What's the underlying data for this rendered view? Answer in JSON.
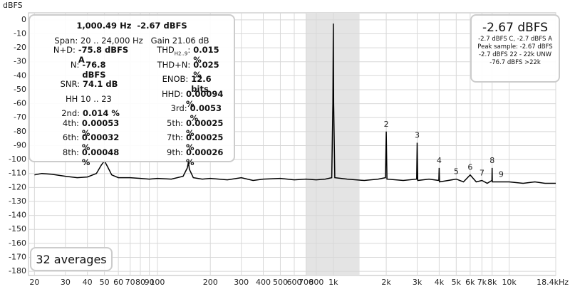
{
  "chart_data": {
    "type": "line",
    "ylabel": "dBFS",
    "x": [
      20,
      22,
      25,
      30,
      35,
      40,
      45,
      48,
      50,
      52,
      55,
      60,
      70,
      80,
      90,
      100,
      120,
      140,
      148,
      150,
      152,
      160,
      180,
      200,
      250,
      300,
      350,
      400,
      500,
      600,
      700,
      800,
      900,
      980,
      995,
      1000,
      1005,
      1020,
      1200,
      1500,
      1800,
      1980,
      2000,
      2020,
      2500,
      2980,
      3000,
      3020,
      3500,
      3980,
      4000,
      4020,
      4500,
      5000,
      5500,
      6000,
      6500,
      7000,
      7500,
      7980,
      8000,
      8020,
      9000,
      10000,
      12000,
      14000,
      16000,
      18400
    ],
    "series": [
      {
        "color": "#000000",
        "values": [
          -111,
          -110,
          -110.5,
          -112,
          -113,
          -112.5,
          -110,
          -104,
          -101,
          -105,
          -111,
          -113,
          -113,
          -113.5,
          -114,
          -113.5,
          -114,
          -112,
          -106,
          -102,
          -107,
          -113,
          -114,
          -113.5,
          -114.5,
          -113,
          -115,
          -114,
          -113.5,
          -114.5,
          -114,
          -114.5,
          -114,
          -113,
          -60,
          -2.67,
          -60,
          -113,
          -114,
          -115,
          -114,
          -113,
          -80,
          -114,
          -115,
          -114,
          -88,
          -115,
          -114,
          -115,
          -106,
          -116,
          -115,
          -114,
          -116,
          -111,
          -116,
          -115,
          -117,
          -115,
          -106,
          -116,
          -116,
          -116,
          -117,
          -116,
          -117,
          -117
        ]
      }
    ],
    "xscale": "log",
    "xlim": [
      18.5,
      18400
    ],
    "ylim": [
      -183,
      5
    ],
    "xticks": [
      20,
      30,
      40,
      50,
      60,
      70,
      80,
      90,
      100,
      200,
      300,
      400,
      500,
      600,
      700,
      800,
      {
        "value": 1000,
        "label": "1k"
      },
      {
        "value": 2000,
        "label": "2k"
      },
      {
        "value": 3000,
        "label": "3k"
      },
      {
        "value": 4000,
        "label": "4k"
      },
      {
        "value": 5000,
        "label": "5k"
      },
      {
        "value": 6000,
        "label": "6k"
      },
      {
        "value": 7000,
        "label": "7k"
      },
      {
        "value": 8000,
        "label": "8k"
      },
      {
        "value": 10000,
        "label": "10k"
      },
      {
        "value": 18400,
        "label": "18.4kHz"
      }
    ],
    "yticks": [
      0,
      -10,
      -20,
      -30,
      -40,
      -50,
      -60,
      -70,
      -80,
      -90,
      -100,
      -110,
      -120,
      -130,
      -140,
      -150,
      -160,
      -170,
      -180
    ],
    "grid": true,
    "highlight_band": [
      702,
      1410
    ],
    "annotations": [
      {
        "text": "2",
        "x": 2000,
        "y": -80
      },
      {
        "text": "3",
        "x": 3000,
        "y": -88
      },
      {
        "text": "4",
        "x": 4000,
        "y": -106
      },
      {
        "text": "5",
        "x": 5000,
        "y": -114
      },
      {
        "text": "6",
        "x": 6000,
        "y": -111
      },
      {
        "text": "7",
        "x": 7000,
        "y": -115
      },
      {
        "text": "8",
        "x": 8000,
        "y": -106
      },
      {
        "text": "9",
        "x": 9000,
        "y": -116
      }
    ]
  },
  "info": {
    "heading": "1,000.49 Hz  -2.67 dBFS",
    "span": "Span: 20 .. 24,000 Hz   Gain 21.06 dB",
    "rows": [
      [
        {
          "label": "N+D:",
          "value": "-75.8 dBFS A"
        },
        {
          "label": "THD",
          "sub": "H2..9",
          "value": "0.015 %"
        }
      ],
      [
        {
          "label": "N:",
          "value": "-76.8 dBFS"
        },
        {
          "label": "THD+N:",
          "value": "0.025 %"
        }
      ],
      [
        {
          "label": "SNR:",
          "value": "74.1 dB"
        },
        {
          "label": "ENOB:",
          "value": "12.6 bits"
        }
      ],
      [
        {
          "label": "HH 10 .. 23"
        },
        {
          "label": "HHD:",
          "value": "0.00094 %"
        }
      ],
      [
        {
          "label": "2nd:",
          "value": "0.014 %"
        },
        {
          "label": "3rd:",
          "value": "0.0053 %"
        }
      ],
      [
        {
          "label": "4th:",
          "value": "0.00053 %"
        },
        {
          "label": "5th:",
          "value": "0.00025 %"
        }
      ],
      [
        {
          "label": "6th:",
          "value": "0.00032 %"
        },
        {
          "label": "7th:",
          "value": "0.00025 %"
        }
      ],
      [
        {
          "label": "8th:",
          "value": "0.00048 %"
        },
        {
          "label": "9th:",
          "value": "0.00026 %"
        }
      ]
    ]
  },
  "level": {
    "main": "-2.67 dBFS",
    "lines": [
      "-2.7 dBFS C, -2.7 dBFS A",
      "Peak sample: -2.67 dBFS",
      "-2.7 dBFS 22 - 22k UNW",
      "-76.7 dBFS >22k"
    ]
  },
  "averages": "32 averages"
}
